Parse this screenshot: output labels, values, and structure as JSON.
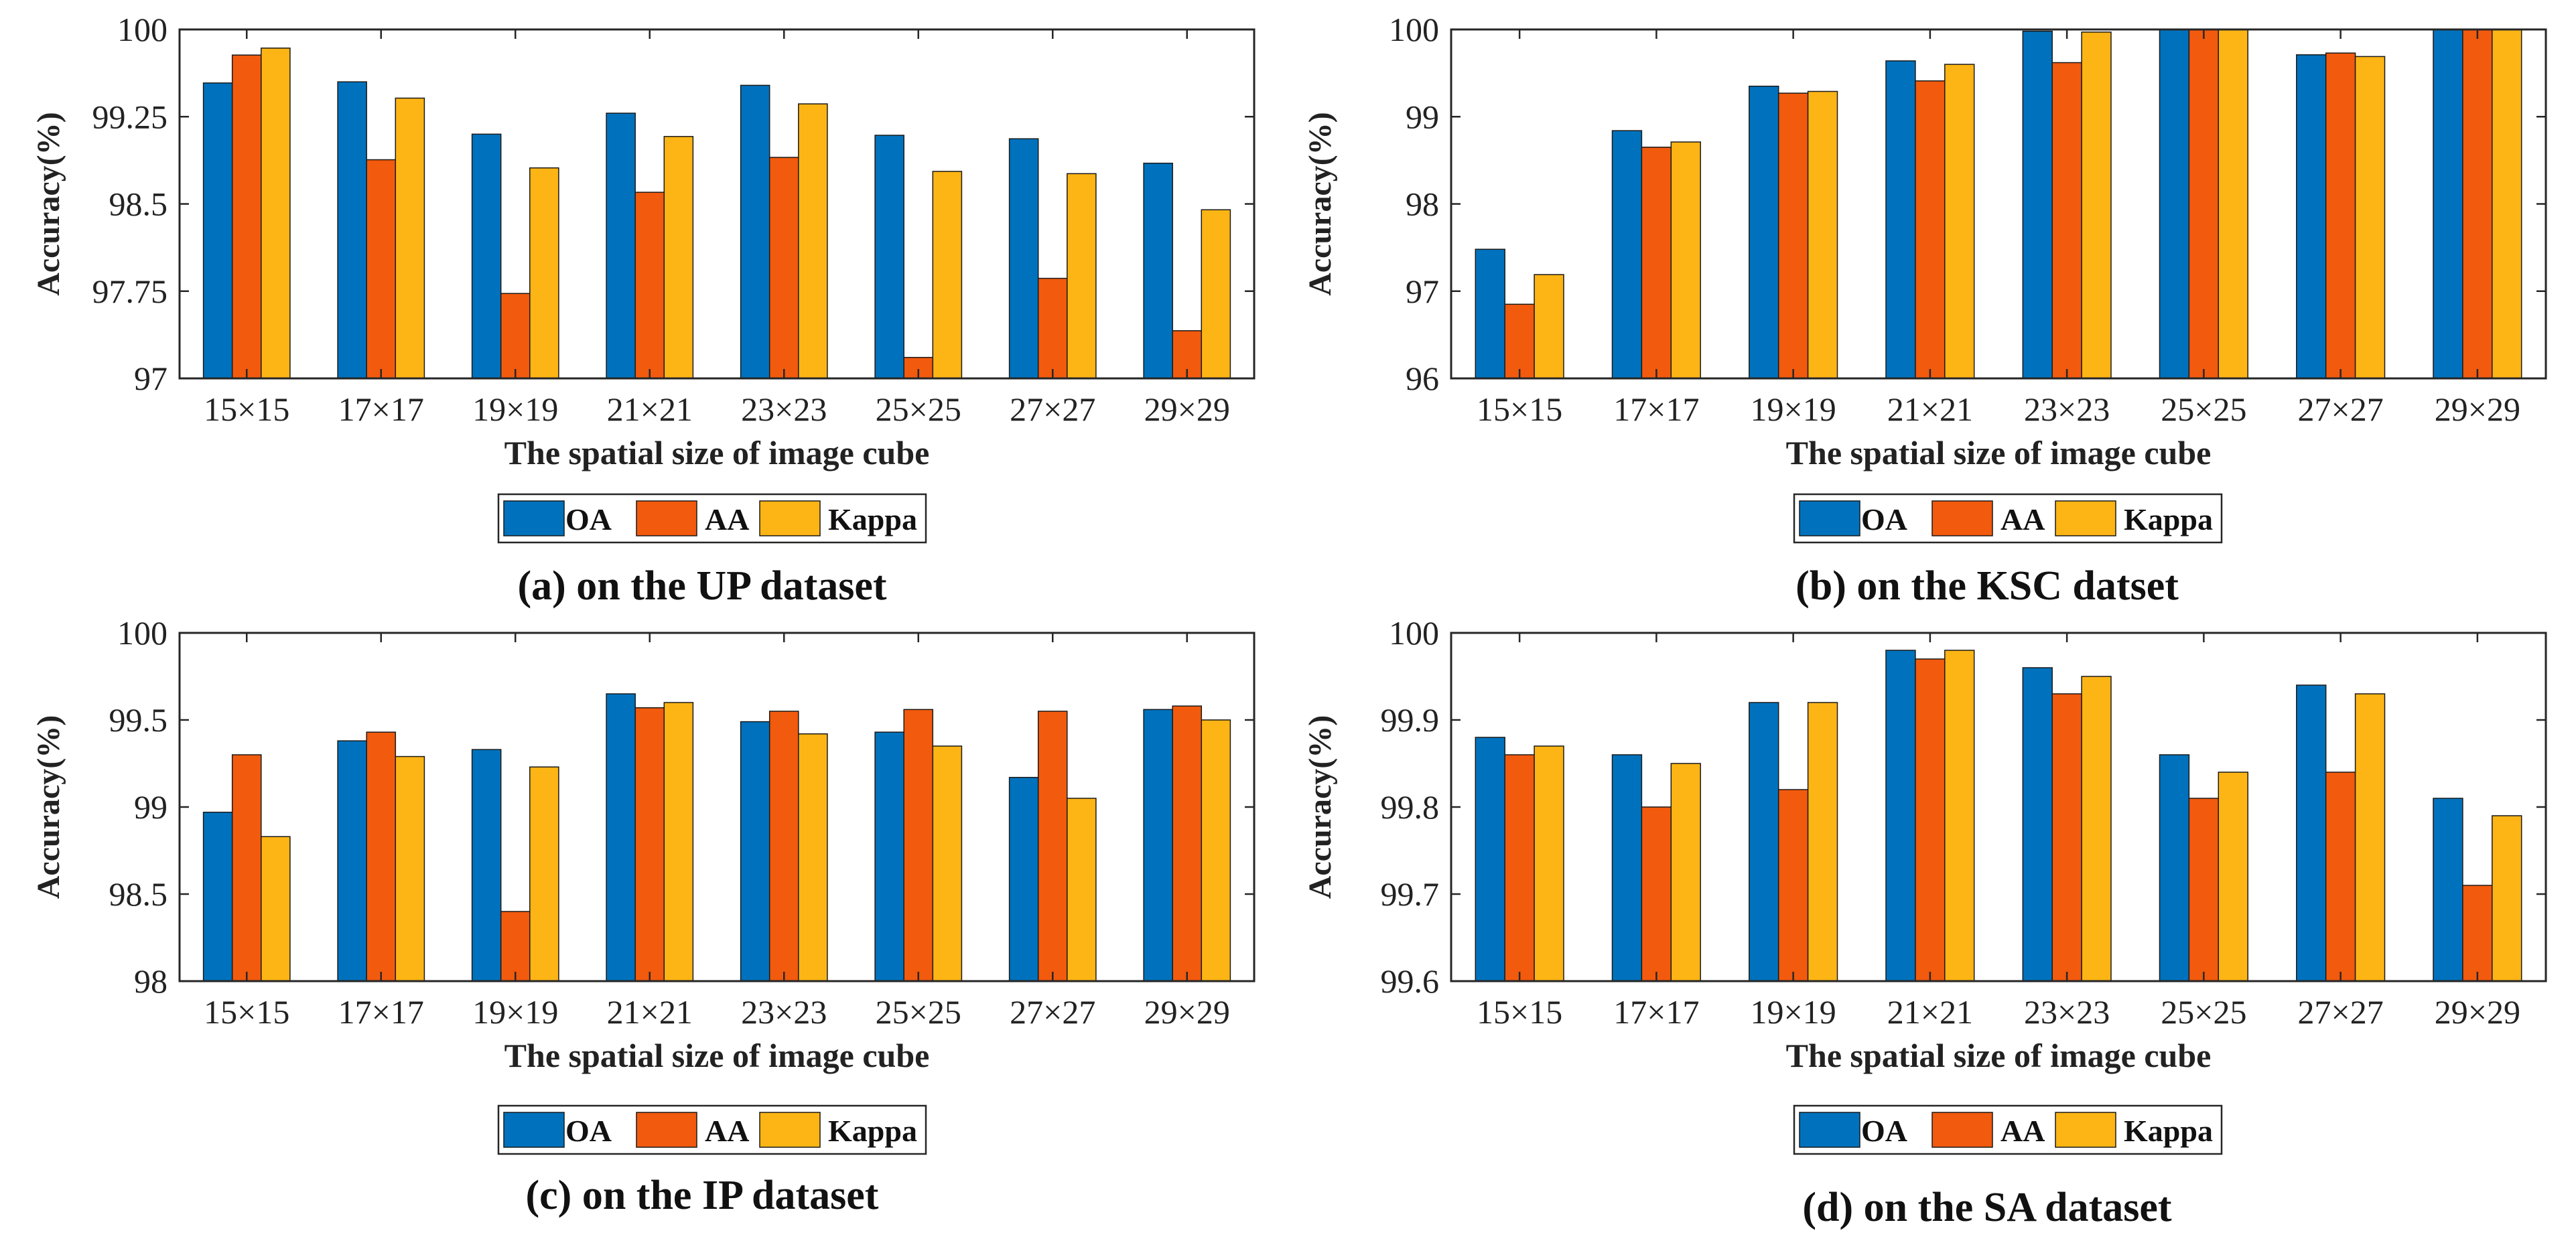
{
  "colors": {
    "OA": "#0072BD",
    "AA": "#F25A0D",
    "Kappa": "#FDB515"
  },
  "chart_data": [
    {
      "type": "bar",
      "caption": "(a) on the UP dataset",
      "xlabel": "The spatial size of image cube",
      "ylabel": "Accuracy(%)",
      "ylim": [
        97,
        100
      ],
      "yticks": [
        "97",
        "97.75",
        "98.5",
        "99.25",
        "100"
      ],
      "ytick_values": [
        97,
        97.75,
        98.5,
        99.25,
        100
      ],
      "categories": [
        "15×15",
        "17×17",
        "19×19",
        "21×21",
        "23×23",
        "25×25",
        "27×27",
        "29×29"
      ],
      "legend": [
        "OA",
        "AA",
        "Kappa"
      ],
      "series": [
        {
          "name": "OA",
          "values": [
            99.54,
            99.55,
            99.1,
            99.28,
            99.52,
            99.09,
            99.06,
            98.85
          ]
        },
        {
          "name": "AA",
          "values": [
            99.78,
            98.88,
            97.73,
            98.6,
            98.9,
            97.18,
            97.86,
            97.41
          ]
        },
        {
          "name": "Kappa",
          "values": [
            99.84,
            99.41,
            98.81,
            99.08,
            99.36,
            98.78,
            98.76,
            98.45
          ]
        }
      ]
    },
    {
      "type": "bar",
      "caption": "(b) on the KSC datset",
      "xlabel": "The spatial size of image cube",
      "ylabel": "Accuracy(%)",
      "ylim": [
        96,
        100
      ],
      "yticks": [
        "96",
        "97",
        "98",
        "99",
        "100"
      ],
      "ytick_values": [
        96,
        97,
        98,
        99,
        100
      ],
      "categories": [
        "15×15",
        "17×17",
        "19×19",
        "21×21",
        "23×23",
        "25×25",
        "27×27",
        "29×29"
      ],
      "legend": [
        "OA",
        "AA",
        "Kappa"
      ],
      "series": [
        {
          "name": "OA",
          "values": [
            97.48,
            98.84,
            99.35,
            99.64,
            99.98,
            100,
            99.71,
            100
          ]
        },
        {
          "name": "AA",
          "values": [
            96.85,
            98.65,
            99.27,
            99.41,
            99.62,
            100,
            99.73,
            100
          ]
        },
        {
          "name": "Kappa",
          "values": [
            97.19,
            98.71,
            99.29,
            99.6,
            99.97,
            100,
            99.69,
            100
          ]
        }
      ]
    },
    {
      "type": "bar",
      "caption": "(c) on the IP dataset",
      "xlabel": "The spatial size of image cube",
      "ylabel": "Accuracy(%)",
      "ylim": [
        98,
        100
      ],
      "yticks": [
        "98",
        "98.5",
        "99",
        "99.5",
        "100"
      ],
      "ytick_values": [
        98,
        98.5,
        99,
        99.5,
        100
      ],
      "categories": [
        "15×15",
        "17×17",
        "19×19",
        "21×21",
        "23×23",
        "25×25",
        "27×27",
        "29×29"
      ],
      "legend": [
        "OA",
        "AA",
        "Kappa"
      ],
      "series": [
        {
          "name": "OA",
          "values": [
            98.97,
            99.38,
            99.33,
            99.65,
            99.49,
            99.43,
            99.17,
            99.56
          ]
        },
        {
          "name": "AA",
          "values": [
            99.3,
            99.43,
            98.4,
            99.57,
            99.55,
            99.56,
            99.55,
            99.58
          ]
        },
        {
          "name": "Kappa",
          "values": [
            98.83,
            99.29,
            99.23,
            99.6,
            99.42,
            99.35,
            99.05,
            99.5
          ]
        }
      ]
    },
    {
      "type": "bar",
      "caption": "(d) on the SA dataset",
      "xlabel": "The spatial size of image cube",
      "ylabel": "Accuracy(%)",
      "ylim": [
        99.6,
        100
      ],
      "yticks": [
        "99.6",
        "99.7",
        "99.8",
        "99.9",
        "100"
      ],
      "ytick_values": [
        99.6,
        99.7,
        99.8,
        99.9,
        100
      ],
      "categories": [
        "15×15",
        "17×17",
        "19×19",
        "21×21",
        "23×23",
        "25×25",
        "27×27",
        "29×29"
      ],
      "legend": [
        "OA",
        "AA",
        "Kappa"
      ],
      "series": [
        {
          "name": "OA",
          "values": [
            99.88,
            99.86,
            99.92,
            99.98,
            99.96,
            99.86,
            99.94,
            99.81
          ]
        },
        {
          "name": "AA",
          "values": [
            99.86,
            99.8,
            99.82,
            99.97,
            99.93,
            99.81,
            99.84,
            99.71
          ]
        },
        {
          "name": "Kappa",
          "values": [
            99.87,
            99.85,
            99.92,
            99.98,
            99.95,
            99.84,
            99.93,
            99.79
          ]
        }
      ]
    }
  ]
}
